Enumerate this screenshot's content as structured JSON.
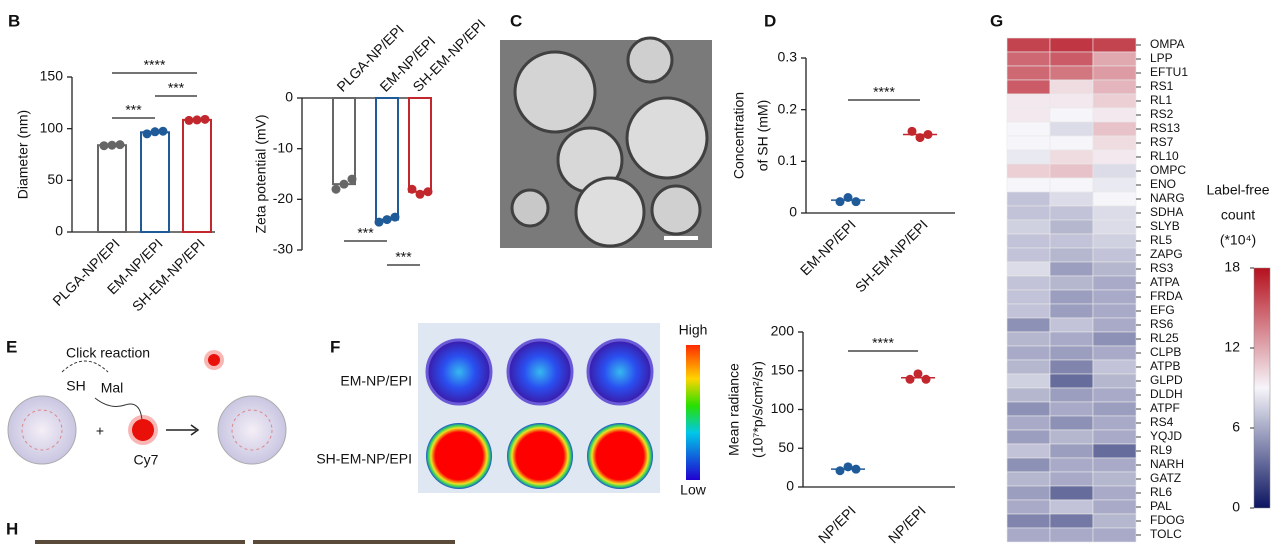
{
  "panel_labels": [
    "B",
    "C",
    "D",
    "E",
    "F",
    "G",
    "H"
  ],
  "chart_data": [
    {
      "type": "bar",
      "ylabel": "Diameter (nm)",
      "categories": [
        "PLGA-NP/EPI",
        "EM-NP/EPI",
        "SH-EM-NP/EPI"
      ],
      "values": [
        84,
        96.5,
        108.5
      ],
      "points": [
        [
          83.5,
          84,
          84.5
        ],
        [
          95,
          97,
          97.5
        ],
        [
          108,
          108.5,
          109
        ]
      ],
      "colors": [
        "#666666",
        "#1f5a99",
        "#c1272d"
      ],
      "ylim": [
        0,
        150
      ],
      "yticks": [
        0,
        50,
        100,
        150
      ],
      "annotations": [
        "****",
        "***",
        "***"
      ]
    },
    {
      "type": "bar",
      "ylabel": "Zeta potential (mV)",
      "categories": [
        "PLGA-NP/EPI",
        "EM-NP/EPI",
        "SH-EM-NP/EPI"
      ],
      "values": [
        -17,
        -24,
        -18.5
      ],
      "points": [
        [
          -18,
          -17,
          -16
        ],
        [
          -24.5,
          -24,
          -23.5
        ],
        [
          -18,
          -19,
          -18.5
        ]
      ],
      "colors": [
        "#666666",
        "#1f5a99",
        "#c1272d"
      ],
      "ylim": [
        -30,
        0
      ],
      "yticks": [
        0,
        -10,
        -20,
        -30
      ],
      "annotations": [
        "***",
        "***"
      ]
    },
    {
      "type": "scatter",
      "ylabel": [
        "Concentration",
        "of SH (mM)"
      ],
      "categories": [
        "EM-NP/EPI",
        "SH-EM-NP/EPI"
      ],
      "values": [
        0.025,
        0.152
      ],
      "points": [
        [
          0.022,
          0.03,
          0.022
        ],
        [
          0.158,
          0.146,
          0.152
        ]
      ],
      "colors": [
        "#1f5a99",
        "#c1272d"
      ],
      "ylim": [
        0,
        0.3
      ],
      "yticks": [
        0,
        0.1,
        0.2,
        0.3
      ],
      "annotations": [
        "****"
      ]
    },
    {
      "type": "scatter",
      "ylabel": [
        "Mean radiance",
        "(10⁷*p/s/cm²/sr)"
      ],
      "categories": [
        "NP/EPI",
        "NP/EPI"
      ],
      "values": [
        23,
        141
      ],
      "points": [
        [
          21,
          26,
          23
        ],
        [
          139,
          146,
          139
        ]
      ],
      "colors": [
        "#1f5a99",
        "#c1272d"
      ],
      "ylim": [
        0,
        200
      ],
      "yticks": [
        0,
        50,
        100,
        150,
        200
      ],
      "annotations": [
        "****"
      ]
    },
    {
      "type": "heatmap",
      "categories": [
        "OMPA",
        "LPP",
        "EFTU1",
        "RS1",
        "RL1",
        "RS2",
        "RS13",
        "RS7",
        "RL10",
        "OMPC",
        "ENO",
        "NARG",
        "SDHA",
        "SLYB",
        "RL5",
        "ZAPG",
        "RS3",
        "ATPA",
        "FRDA",
        "EFG",
        "RS6",
        "RL25",
        "CLPB",
        "ATPB",
        "GLPD",
        "DLDH",
        "ATPF",
        "RS4",
        "YQJD",
        "RL9",
        "NARH",
        "GATZ",
        "RL6",
        "PAL",
        "FDOG",
        "TOLC"
      ],
      "values": [
        [
          16,
          16.5,
          16
        ],
        [
          14.5,
          15,
          12
        ],
        [
          14.5,
          14,
          12.5
        ],
        [
          15,
          10,
          11.5
        ],
        [
          9.5,
          9.5,
          10.5
        ],
        [
          9.5,
          9,
          9.5
        ],
        [
          9,
          8,
          11
        ],
        [
          9,
          9,
          10
        ],
        [
          8.5,
          10,
          9.5
        ],
        [
          10.5,
          11,
          8
        ],
        [
          9,
          9,
          8.5
        ],
        [
          7,
          8,
          9
        ],
        [
          7,
          7,
          8
        ],
        [
          7.5,
          6.5,
          8
        ],
        [
          7,
          7,
          7.5
        ],
        [
          7,
          6.5,
          7
        ],
        [
          8,
          5.5,
          6.5
        ],
        [
          7,
          6.5,
          6
        ],
        [
          7,
          5.5,
          6
        ],
        [
          7,
          5.5,
          6
        ],
        [
          5,
          7,
          6
        ],
        [
          6.5,
          6,
          5
        ],
        [
          6,
          5.5,
          6
        ],
        [
          6.5,
          4.5,
          7
        ],
        [
          7.5,
          3.5,
          6.5
        ],
        [
          6.5,
          5.5,
          6
        ],
        [
          5,
          6,
          5.5
        ],
        [
          6,
          5,
          6
        ],
        [
          5.5,
          6.5,
          6
        ],
        [
          7,
          5.5,
          3.5
        ],
        [
          5,
          6,
          6
        ],
        [
          6.5,
          6,
          6.5
        ],
        [
          5.5,
          3.5,
          6
        ],
        [
          6,
          7,
          6
        ],
        [
          4.5,
          4,
          6.5
        ],
        [
          6,
          6,
          6
        ]
      ],
      "colorbar_title": [
        "Label-free",
        "count",
        "(*10⁴)"
      ],
      "clim": [
        0,
        18
      ],
      "cticks": [
        0,
        6,
        12,
        18
      ],
      "colormap": [
        "#0b1560",
        "#f6f5fa",
        "#b5101d"
      ]
    }
  ],
  "diagram_e": {
    "title": "Click reaction",
    "labels": [
      "SH",
      "Mal",
      "+",
      "Cy7"
    ]
  },
  "panel_f": {
    "rows": [
      "EM-NP/EPI",
      "SH-EM-NP/EPI"
    ],
    "colorbar": [
      "High",
      "Low"
    ]
  }
}
